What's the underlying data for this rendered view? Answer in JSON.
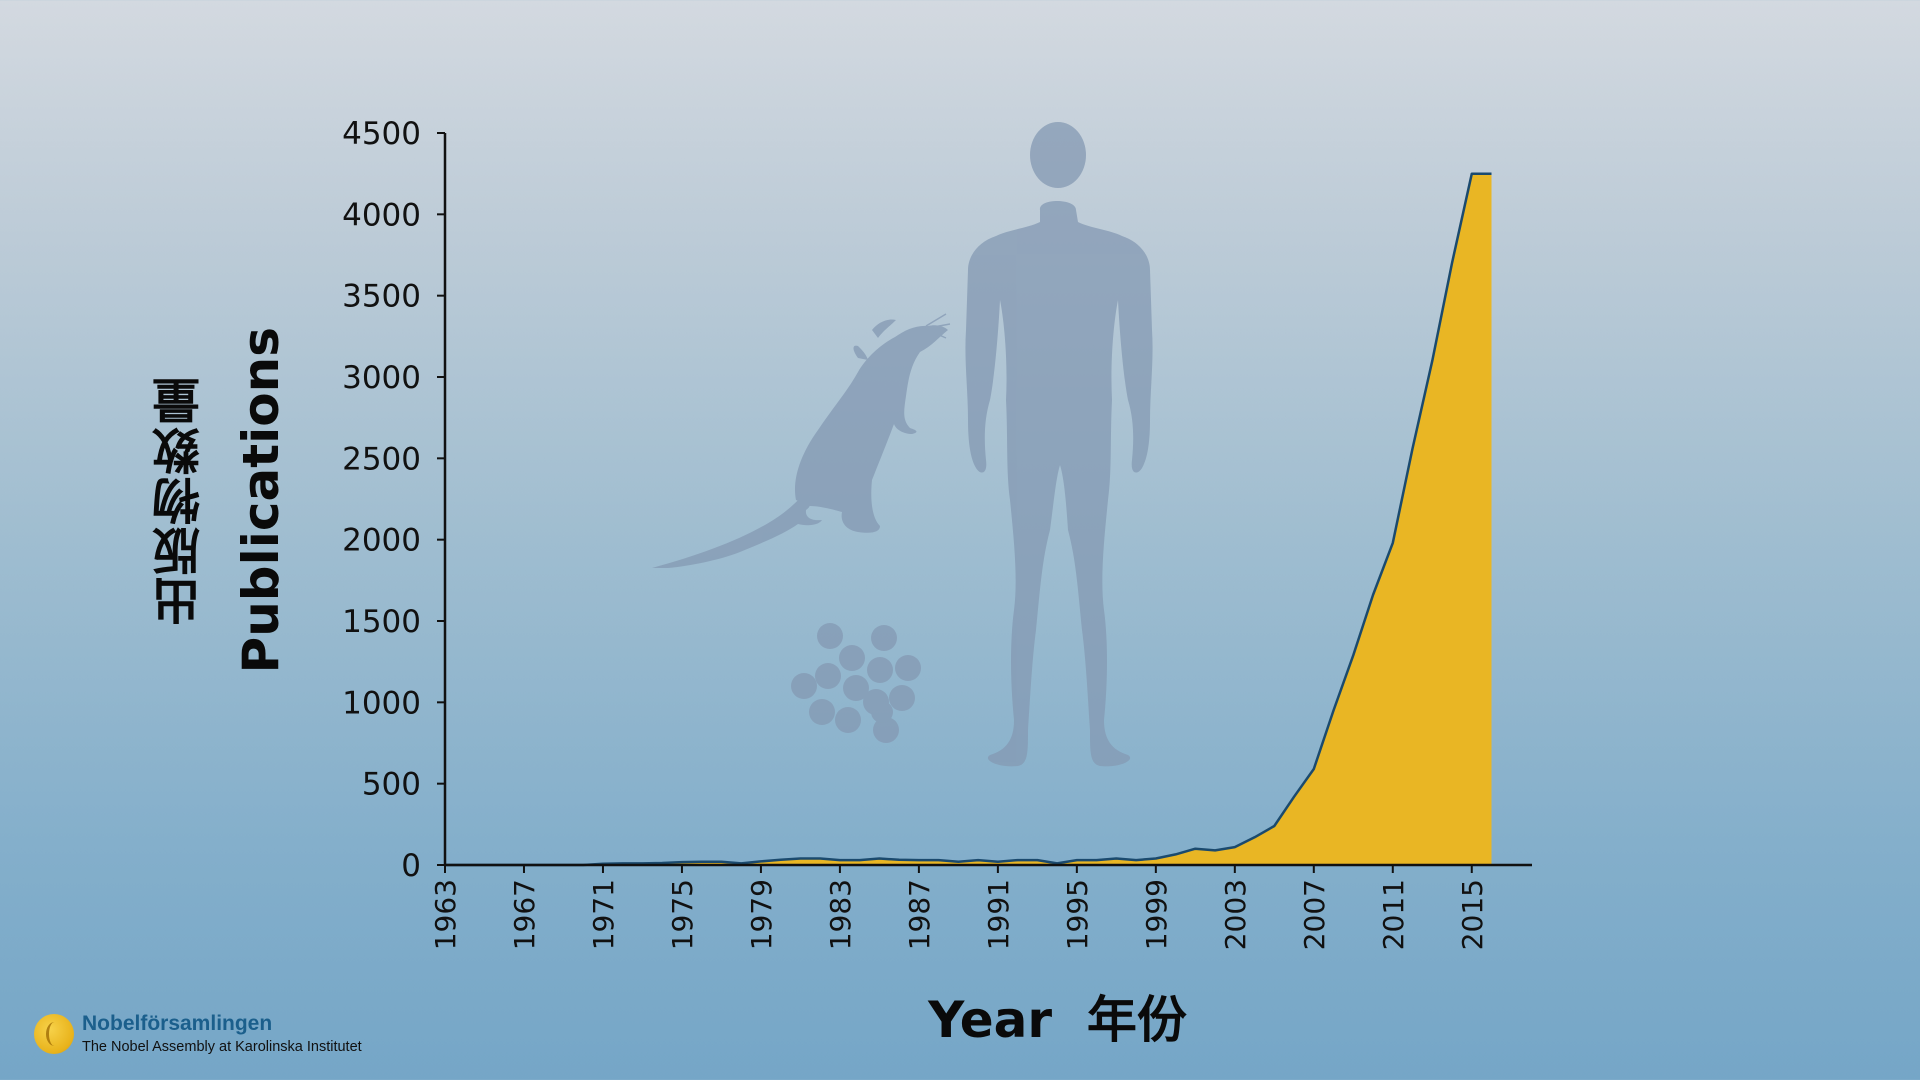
{
  "chart_data": {
    "type": "area",
    "title": "",
    "ylabel_en": "Publications",
    "ylabel_zh": "出版物数量",
    "xlabel": "Year  年份",
    "xlim": [
      1963,
      2018
    ],
    "ylim": [
      0,
      4500
    ],
    "x_ticks": [
      1963,
      1967,
      1971,
      1975,
      1979,
      1983,
      1987,
      1991,
      1995,
      1999,
      2003,
      2007,
      2011,
      2015
    ],
    "y_ticks": [
      0,
      500,
      1000,
      1500,
      2000,
      2500,
      3000,
      3500,
      4000,
      4500
    ],
    "grid": false,
    "fill_color": "#e9b624",
    "line_color": "#1b4a6e",
    "axis_color": "#111111",
    "series": [
      {
        "x": [
          1963,
          1964,
          1965,
          1966,
          1967,
          1968,
          1969,
          1970,
          1971,
          1972,
          1973,
          1974,
          1975,
          1976,
          1977,
          1978,
          1979,
          1980,
          1981,
          1982,
          1983,
          1984,
          1985,
          1986,
          1987,
          1988,
          1989,
          1990,
          1991,
          1992,
          1993,
          1994,
          1995,
          1996,
          1997,
          1998,
          1999,
          2000,
          2001,
          2002,
          2003,
          2004,
          2005,
          2006,
          2007,
          2008,
          2009,
          2010,
          2011,
          2012,
          2013,
          2014,
          2015,
          2016
        ],
        "y": [
          0,
          0,
          0,
          0,
          0,
          0,
          0,
          0,
          8,
          10,
          10,
          12,
          18,
          20,
          20,
          10,
          22,
          32,
          40,
          40,
          30,
          30,
          40,
          32,
          30,
          30,
          20,
          30,
          20,
          30,
          30,
          10,
          30,
          30,
          40,
          30,
          40,
          65,
          100,
          90,
          110,
          170,
          240,
          420,
          590,
          950,
          1290,
          1660,
          1980,
          2560,
          3100,
          3700,
          4250,
          4250
        ]
      }
    ]
  },
  "illustrations": {
    "rat": "rat-silhouette",
    "human": "human-silhouette",
    "cells": "cell-cluster"
  },
  "logo": {
    "name": "Nobelförsamlingen",
    "subtitle": "The Nobel Assembly at Karolinska Institutet"
  }
}
